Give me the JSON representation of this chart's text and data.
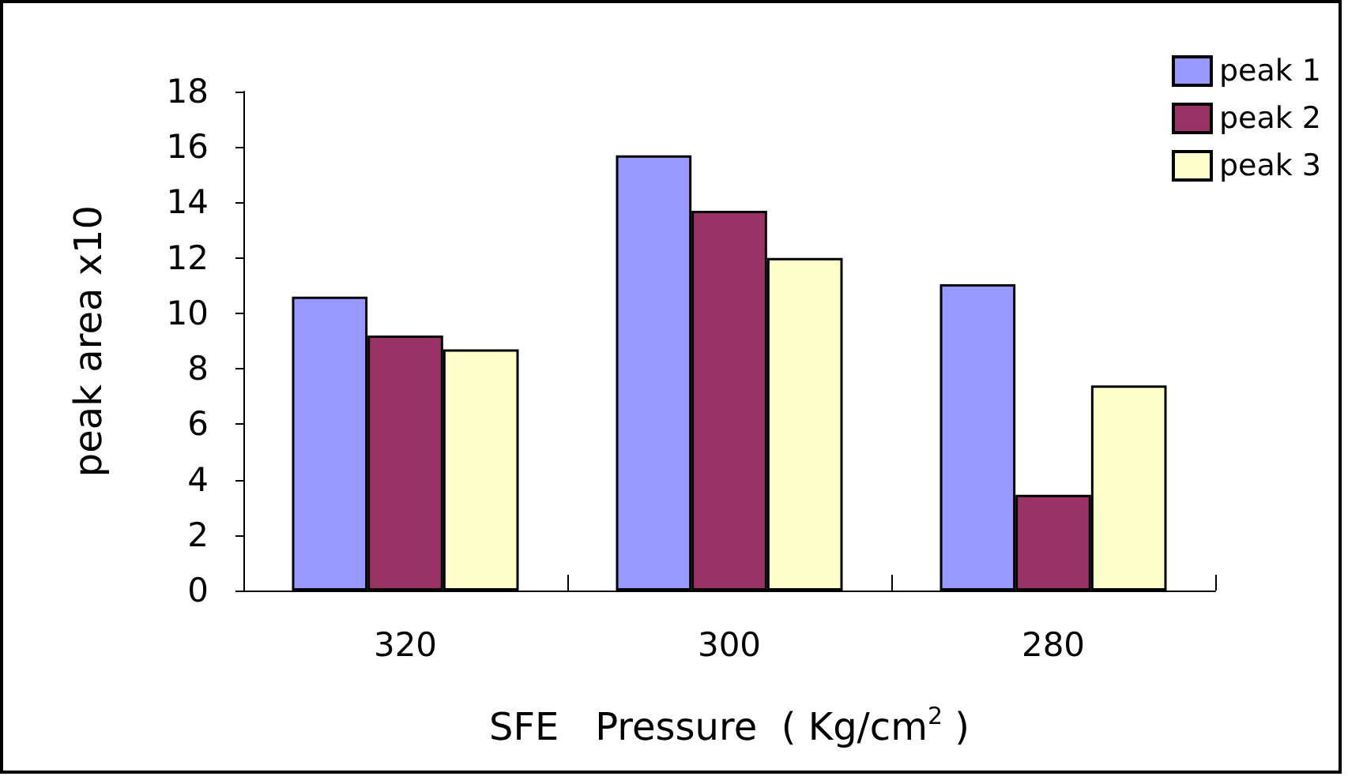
{
  "chart_data": {
    "type": "bar",
    "xlabel": "SFE   Pressure  ( Kg/cm$^{2}$ )",
    "ylabel": "peak area x10",
    "categories": [
      "320",
      "300",
      "280"
    ],
    "series": [
      {
        "name": "peak 1",
        "color": "#9999ff",
        "values": [
          10.6,
          15.7,
          11.05
        ]
      },
      {
        "name": "peak 2",
        "color": "#993366",
        "values": [
          9.2,
          13.7,
          3.45
        ]
      },
      {
        "name": "peak 3",
        "color": "#ffffcc",
        "values": [
          8.7,
          12.0,
          7.4
        ]
      }
    ],
    "ylim": [
      0,
      18
    ],
    "yticks": [
      0,
      2,
      4,
      6,
      8,
      10,
      12,
      14,
      16,
      18
    ],
    "grid": false,
    "legend": "top right"
  }
}
